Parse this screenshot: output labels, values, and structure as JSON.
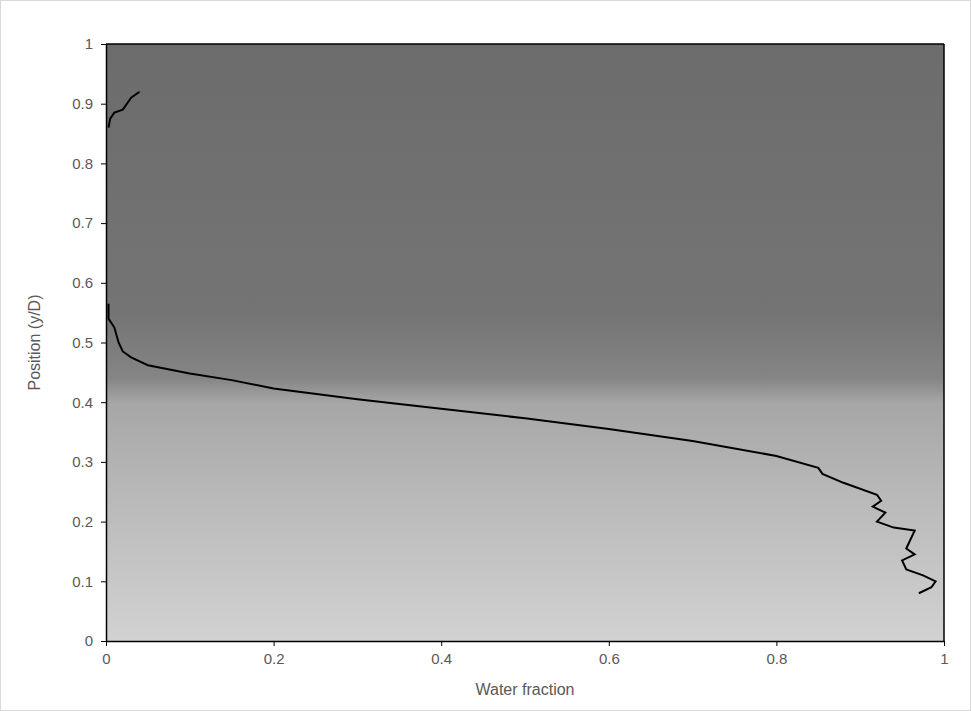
{
  "chart_data": {
    "type": "line",
    "xlabel": "Water fraction",
    "ylabel": "Position (y/D)",
    "x": [
      0.04,
      0.03,
      0.025,
      0.02,
      0.01,
      0.005,
      0.003,
      null,
      0.003,
      0.003,
      0.01,
      0.015,
      0.02,
      0.03,
      0.05,
      0.1,
      0.15,
      0.2,
      0.3,
      0.4,
      0.5,
      0.6,
      0.7,
      0.8,
      0.85,
      0.855,
      0.88,
      0.92,
      0.925,
      0.915,
      0.93,
      0.92,
      0.94,
      0.965,
      0.96,
      0.955,
      0.965,
      0.95,
      0.955,
      0.975,
      0.99,
      0.985,
      0.97
    ],
    "values": [
      0.92,
      0.91,
      0.9,
      0.89,
      0.885,
      0.875,
      0.86,
      null,
      0.565,
      0.54,
      0.525,
      0.5,
      0.485,
      0.475,
      0.462,
      0.448,
      0.437,
      0.423,
      0.405,
      0.389,
      0.373,
      0.355,
      0.335,
      0.31,
      0.29,
      0.28,
      0.265,
      0.245,
      0.235,
      0.225,
      0.215,
      0.2,
      0.19,
      0.185,
      0.17,
      0.155,
      0.145,
      0.135,
      0.12,
      0.11,
      0.1,
      0.09,
      0.08
    ],
    "color": "#000000",
    "xlim": [
      0,
      1
    ],
    "xticks": [
      0,
      0.2,
      0.4,
      0.6,
      0.8,
      1
    ],
    "ylim": [
      0,
      1
    ],
    "yticks": [
      0,
      0.1,
      0.2,
      0.3,
      0.4,
      0.5,
      0.6,
      0.7,
      0.8,
      0.9,
      1
    ],
    "grid": false
  }
}
